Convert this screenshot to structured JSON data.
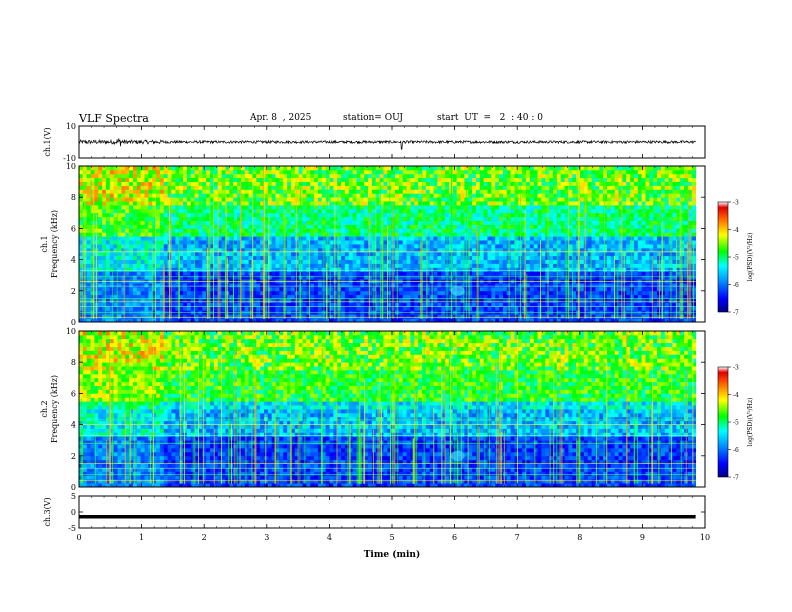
{
  "header": {
    "title": "VLF Spectra",
    "date": "Apr. 8  , 2025",
    "station": "station= OUJ",
    "start_time": "start  UT  =   2  : 40 : 0"
  },
  "chart_data": [
    {
      "panel": "ch1-waveform",
      "type": "line",
      "ylabel": "ch.1(V)",
      "ylim": [
        -10,
        10
      ],
      "yticks": [
        10,
        -10
      ],
      "xlim": [
        0,
        10
      ],
      "amplitude_range": [
        -1.5,
        1.5
      ]
    },
    {
      "panel": "ch1-spectrogram",
      "type": "heatmap",
      "ylabel_line1": "ch.1",
      "ylabel_line2": "Frequency  (kHz)",
      "ylim": [
        0,
        10
      ],
      "yticks": [
        0,
        2,
        4,
        6,
        8,
        10
      ],
      "xlim": [
        0,
        10
      ],
      "data_end_min": 9.85,
      "band_lines_khz": [
        0.3,
        0.6,
        1.0,
        1.3,
        1.5,
        2.3,
        2.6,
        2.9,
        3.3,
        4.5
      ],
      "colorbar": {
        "label": "log(PSD)(V²/Hz)",
        "range": [
          -7,
          -3
        ],
        "ticks": [
          -3,
          -4,
          -5,
          -6,
          -7
        ]
      }
    },
    {
      "panel": "ch2-spectrogram",
      "type": "heatmap",
      "ylabel_line1": "ch.2",
      "ylabel_line2": "Frequency  (kHz)",
      "ylim": [
        0,
        10
      ],
      "yticks": [
        0,
        2,
        4,
        6,
        8,
        10
      ],
      "xlim": [
        0,
        10
      ],
      "data_end_min": 9.85,
      "band_lines_khz": [
        0.4,
        0.8,
        1.2,
        1.5,
        2.8,
        3.3,
        4.0,
        4.3
      ],
      "colorbar": {
        "label": "log(PSD)(V²/Hz)",
        "range": [
          -7,
          -3
        ],
        "ticks": [
          -3,
          -4,
          -5,
          -6,
          -7
        ]
      }
    },
    {
      "panel": "ch3-waveform",
      "type": "line",
      "ylabel": "ch.3(V)",
      "ylim": [
        -5,
        5
      ],
      "yticks": [
        5,
        0,
        -5
      ],
      "xlim": [
        0,
        10
      ],
      "constant_value": -1.5
    }
  ],
  "xaxis": {
    "label": "Time  (min)",
    "ticks": [
      0,
      1,
      2,
      3,
      4,
      5,
      6,
      7,
      8,
      9,
      10
    ]
  }
}
